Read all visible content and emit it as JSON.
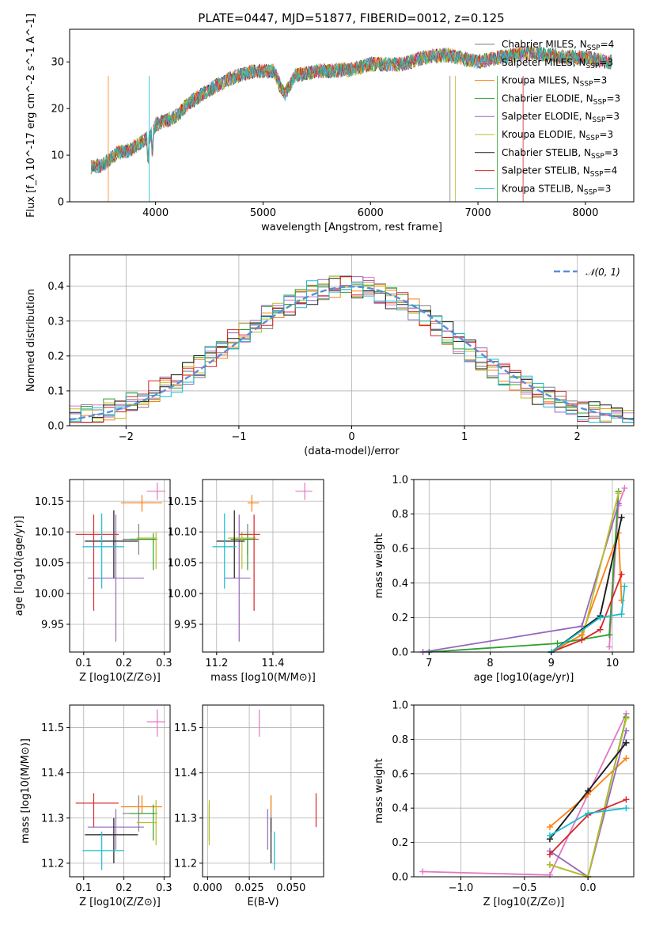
{
  "figure_title": "PLATE=0447, MJD=51877, FIBERID=0012, z=0.125",
  "model_colors": [
    "#7f7f7f",
    "#e377c2",
    "#ff7f0e",
    "#2ca02c",
    "#9467bd",
    "#bcbd22",
    "#1a1a1a",
    "#d62728",
    "#17becf"
  ],
  "chart_data": [
    {
      "id": "spectrum",
      "type": "line",
      "title": "PLATE=0447, MJD=51877, FIBERID=0012, z=0.125",
      "xlabel": "wavelength [Angstrom, rest frame]",
      "ylabel": "Flux [f_λ 10^-17 erg cm^-2 s^-1 A^-1]",
      "xlim": [
        3200,
        8450
      ],
      "ylim": [
        0,
        37
      ],
      "xticks": [
        4000,
        5000,
        6000,
        7000,
        8000
      ],
      "yticks": [
        0,
        10,
        20,
        30
      ],
      "continuum": [
        [
          3400,
          7.5
        ],
        [
          3500,
          7.8
        ],
        [
          3650,
          10.5
        ],
        [
          3750,
          11
        ],
        [
          3850,
          12.5
        ],
        [
          3950,
          14
        ],
        [
          4000,
          16.5
        ],
        [
          4200,
          18.5
        ],
        [
          4300,
          21
        ],
        [
          4500,
          24
        ],
        [
          4700,
          26.5
        ],
        [
          4900,
          28
        ],
        [
          5100,
          28
        ],
        [
          5200,
          23
        ],
        [
          5300,
          27
        ],
        [
          5500,
          28
        ],
        [
          5800,
          28.3
        ],
        [
          6000,
          29.5
        ],
        [
          6300,
          29.5
        ],
        [
          6500,
          31
        ],
        [
          6700,
          31.5
        ],
        [
          7000,
          30
        ],
        [
          7200,
          31
        ],
        [
          7500,
          32
        ],
        [
          7800,
          31
        ],
        [
          8000,
          31
        ],
        [
          8200,
          30
        ]
      ],
      "legend": [
        {
          "label": "Chabrier MILES, N",
          "sub": "SSP",
          "suffix": "=4"
        },
        {
          "label": "Salpeter MILES, N",
          "sub": "SSP",
          "suffix": "=3"
        },
        {
          "label": "Kroupa MILES, N",
          "sub": "SSP",
          "suffix": "=3"
        },
        {
          "label": "Chabrier ELODIE, N",
          "sub": "SSP",
          "suffix": "=3"
        },
        {
          "label": "Salpeter ELODIE, N",
          "sub": "SSP",
          "suffix": "=3"
        },
        {
          "label": "Kroupa ELODIE, N",
          "sub": "SSP",
          "suffix": "=3"
        },
        {
          "label": "Chabrier STELIB, N",
          "sub": "SSP",
          "suffix": "=3"
        },
        {
          "label": "Salpeter STELIB, N",
          "sub": "SSP",
          "suffix": "=4"
        },
        {
          "label": "Kroupa STELIB, N",
          "sub": "SSP",
          "suffix": "=3"
        }
      ]
    },
    {
      "id": "residuals",
      "type": "histogram",
      "xlabel": "(data-model)/error",
      "ylabel": "Normed distribution",
      "xlim": [
        -2.5,
        2.5
      ],
      "ylim": [
        0,
        0.49
      ],
      "xticks": [
        -2,
        -1,
        0,
        1,
        2
      ],
      "yticks": [
        0.0,
        0.1,
        0.2,
        0.3,
        0.4
      ],
      "legend_label": "𝒩(0, 1)",
      "legend_position": "top-right",
      "bin_width": 0.1,
      "bin_start": -2.5
    },
    {
      "id": "age_vs_Z",
      "type": "scatter",
      "xlabel": "Z [log10(Z/Z⊙)]",
      "ylabel": "age [log10(age/yr)]",
      "xlim": [
        0.065,
        0.315
      ],
      "ylim": [
        9.905,
        10.185
      ],
      "xticks": [
        0.1,
        0.2,
        0.3
      ],
      "yticks": [
        9.95,
        10.0,
        10.05,
        10.1,
        10.15
      ]
    },
    {
      "id": "age_vs_mass",
      "type": "scatter",
      "xlabel": "mass [log10(M/M⊙)]",
      "ylabel": "",
      "xlim": [
        11.15,
        11.58
      ],
      "ylim": [
        9.905,
        10.185
      ],
      "xticks": [
        11.2,
        11.4
      ],
      "yticks": [
        9.95,
        10.0,
        10.05,
        10.1,
        10.15
      ]
    },
    {
      "id": "weight_vs_age",
      "type": "line",
      "xlabel": "age [log10(age/yr)]",
      "ylabel": "mass weight",
      "xlim": [
        6.75,
        10.35
      ],
      "ylim": [
        0,
        1
      ],
      "xticks": [
        7,
        8,
        9,
        10
      ],
      "yticks": [
        0.0,
        0.2,
        0.4,
        0.6,
        0.8,
        1.0
      ]
    },
    {
      "id": "mass_vs_Z",
      "type": "scatter",
      "xlabel": "Z [log10(Z/Z⊙)]",
      "ylabel": "mass [log10(M/M⊙)]",
      "xlim": [
        0.065,
        0.315
      ],
      "ylim": [
        11.17,
        11.55
      ],
      "xticks": [
        0.1,
        0.2,
        0.3
      ],
      "yticks": [
        11.2,
        11.3,
        11.4,
        11.5
      ]
    },
    {
      "id": "mass_vs_ebv",
      "type": "scatter",
      "xlabel": "E(B-V)",
      "ylabel": "",
      "xlim": [
        -0.003,
        0.0695
      ],
      "ylim": [
        11.17,
        11.55
      ],
      "xticks": [
        0.0,
        0.025,
        0.05
      ],
      "xticklabels": [
        "0.000",
        "0.025",
        "0.050"
      ],
      "yticks": [
        11.2,
        11.3,
        11.4,
        11.5
      ]
    },
    {
      "id": "weight_vs_Z",
      "type": "line",
      "xlabel": "Z [log10(Z/Z⊙)]",
      "ylabel": "mass weight",
      "xlim": [
        -1.37,
        0.36
      ],
      "ylim": [
        0,
        1
      ],
      "xticks": [
        -1.0,
        -0.5,
        0.0
      ],
      "xticklabels": [
        "−1.0",
        "−0.5",
        "0.0"
      ],
      "yticks": [
        0.0,
        0.2,
        0.4,
        0.6,
        0.8,
        1.0
      ]
    }
  ],
  "fits": [
    {
      "Z": 0.237,
      "zlo": 0.197,
      "zhi": 0.277,
      "age": 10.088,
      "alo": 10.063,
      "ahi": 10.113,
      "mass": 11.31,
      "mlo": 11.27,
      "mhi": 11.35,
      "ebv": 0.038
    },
    {
      "Z": 0.283,
      "zlo": 0.257,
      "zhi": 0.303,
      "age": 10.166,
      "alo": 10.152,
      "ahi": 10.18,
      "mass": 11.513,
      "mlo": 11.48,
      "mhi": 11.54,
      "ebv": 0.031
    },
    {
      "Z": 0.245,
      "zlo": 0.193,
      "zhi": 0.295,
      "age": 10.147,
      "alo": 10.133,
      "ahi": 10.16,
      "mass": 11.325,
      "mlo": 11.31,
      "mhi": 11.35,
      "ebv": 0.038
    },
    {
      "Z": 0.273,
      "zlo": 0.215,
      "zhi": 0.283,
      "age": 10.088,
      "alo": 10.038,
      "ahi": 10.098,
      "mass": 11.31,
      "mlo": 11.25,
      "mhi": 11.33,
      "ebv": 0.001
    },
    {
      "Z": 0.18,
      "zlo": 0.11,
      "zhi": 0.25,
      "age": 10.025,
      "alo": 9.922,
      "ahi": 10.128,
      "mass": 11.28,
      "mlo": 11.23,
      "mhi": 11.32,
      "ebv": 0.036
    },
    {
      "Z": 0.28,
      "zlo": 0.232,
      "zhi": 0.282,
      "age": 10.09,
      "alo": 10.04,
      "ahi": 10.1,
      "mass": 11.29,
      "mlo": 11.24,
      "mhi": 11.34,
      "ebv": 0.001
    },
    {
      "Z": 0.175,
      "zlo": 0.103,
      "zhi": 0.235,
      "age": 10.085,
      "alo": 10.025,
      "ahi": 10.135,
      "mass": 11.263,
      "mlo": 11.2,
      "mhi": 11.3,
      "ebv": 0.038
    },
    {
      "Z": 0.125,
      "zlo": 0.08,
      "zhi": 0.187,
      "age": 10.096,
      "alo": 9.972,
      "ahi": 10.128,
      "mass": 11.333,
      "mlo": 11.28,
      "mhi": 11.355,
      "ebv": 0.065
    },
    {
      "Z": 0.145,
      "zlo": 0.097,
      "zhi": 0.2,
      "age": 10.076,
      "alo": 10.008,
      "ahi": 10.13,
      "mass": 11.228,
      "mlo": 11.185,
      "mhi": 11.27,
      "ebv": 0.04
    }
  ],
  "weights_age": [
    [
      [
        9.0,
        0.0
      ],
      [
        9.8,
        0.21
      ],
      [
        10.15,
        0.78
      ]
    ],
    [
      [
        9.95,
        0.03
      ],
      [
        10.1,
        0.85
      ],
      [
        10.2,
        0.95
      ]
    ],
    [
      [
        9.0,
        0.0
      ],
      [
        9.5,
        0.1
      ],
      [
        10.1,
        0.69
      ],
      [
        10.15,
        0.3
      ]
    ],
    [
      [
        7.0,
        0.0
      ],
      [
        9.1,
        0.05
      ],
      [
        9.95,
        0.1
      ],
      [
        10.1,
        0.93
      ]
    ],
    [
      [
        6.9,
        0.0
      ],
      [
        9.5,
        0.15
      ],
      [
        10.1,
        0.86
      ]
    ],
    [
      [
        9.0,
        0.0
      ],
      [
        9.5,
        0.07
      ],
      [
        10.1,
        0.92
      ]
    ],
    [
      [
        9.0,
        0.0
      ],
      [
        9.8,
        0.21
      ],
      [
        10.15,
        0.78
      ]
    ],
    [
      [
        9.0,
        0.0
      ],
      [
        9.5,
        0.07
      ],
      [
        9.8,
        0.13
      ],
      [
        10.15,
        0.45
      ]
    ],
    [
      [
        9.0,
        0.0
      ],
      [
        9.8,
        0.2
      ],
      [
        10.15,
        0.22
      ],
      [
        10.2,
        0.38
      ]
    ]
  ],
  "weights_Z": [
    [
      [
        -0.3,
        0.22
      ],
      [
        0.0,
        0.5
      ],
      [
        0.3,
        0.78
      ]
    ],
    [
      [
        -1.3,
        0.03
      ],
      [
        -0.3,
        0.01
      ],
      [
        0.3,
        0.95
      ]
    ],
    [
      [
        -0.3,
        0.29
      ],
      [
        0.0,
        0.48
      ],
      [
        0.3,
        0.69
      ]
    ],
    [
      [
        -0.3,
        0.07
      ],
      [
        0.0,
        0.0
      ],
      [
        0.3,
        0.93
      ]
    ],
    [
      [
        -0.3,
        0.15
      ],
      [
        0.0,
        0.0
      ],
      [
        0.3,
        0.85
      ]
    ],
    [
      [
        -0.3,
        0.07
      ],
      [
        0.0,
        0.0
      ],
      [
        0.3,
        0.92
      ]
    ],
    [
      [
        -0.3,
        0.22
      ],
      [
        0.0,
        0.5
      ],
      [
        0.3,
        0.78
      ]
    ],
    [
      [
        -0.3,
        0.13
      ],
      [
        0.0,
        0.36
      ],
      [
        0.3,
        0.45
      ]
    ],
    [
      [
        -0.3,
        0.24
      ],
      [
        0.0,
        0.37
      ],
      [
        0.3,
        0.4
      ]
    ]
  ]
}
